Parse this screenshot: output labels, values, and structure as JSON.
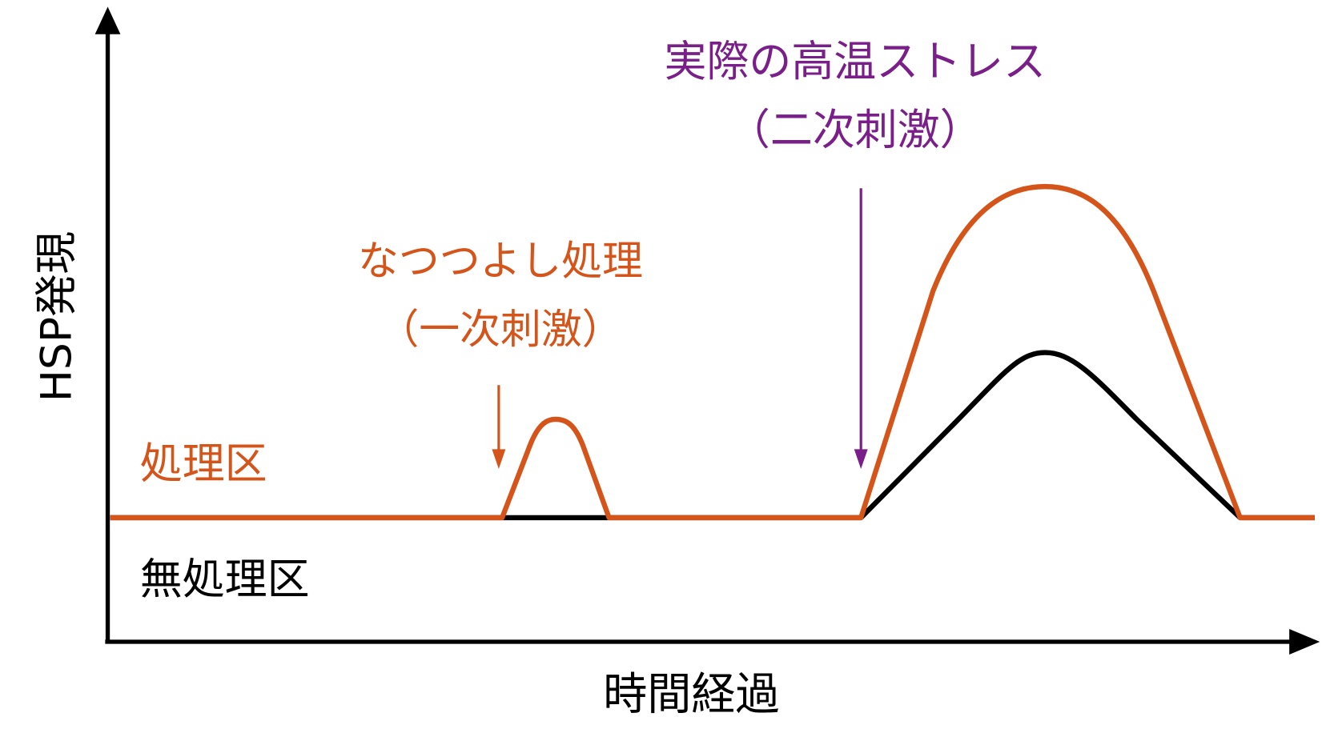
{
  "y_axis_label": "HSP発現",
  "x_axis_label": "時間経過",
  "series_labels": {
    "treated": "処理区",
    "untreated": "無処理区"
  },
  "annotations": [
    {
      "lines": [
        "なつつよし処理",
        "（一次刺激）"
      ]
    },
    {
      "lines": [
        "実際の高温ストレス",
        "（二次刺激）"
      ]
    }
  ]
}
